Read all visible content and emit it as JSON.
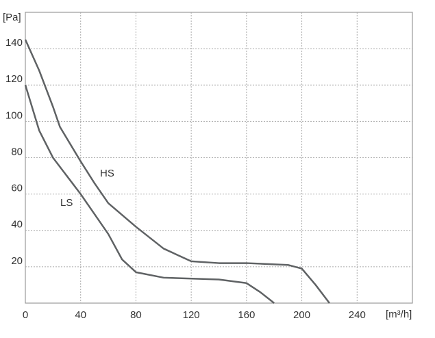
{
  "chart_data": {
    "type": "line",
    "y_label": "[Pa]",
    "x_label": "[m³/h]",
    "xlim": [
      0,
      280
    ],
    "xticks": [
      0,
      40,
      80,
      120,
      160,
      200,
      240
    ],
    "ylim": [
      0,
      160
    ],
    "yticks": [
      20,
      40,
      60,
      80,
      100,
      120,
      140
    ],
    "grid": true,
    "series": [
      {
        "name": "HS",
        "color": "#5f6264",
        "x": [
          0,
          10,
          20,
          25,
          40,
          50,
          60,
          80,
          100,
          120,
          140,
          160,
          190,
          200,
          210,
          220
        ],
        "values": [
          145,
          128,
          108,
          97,
          78,
          66,
          55,
          42,
          30,
          23,
          22,
          22,
          21,
          19,
          10,
          0
        ]
      },
      {
        "name": "LS",
        "color": "#5f6264",
        "x": [
          0,
          10,
          20,
          30,
          40,
          60,
          70,
          80,
          100,
          140,
          160,
          170,
          180
        ],
        "values": [
          120,
          95,
          80,
          70,
          60,
          38,
          24,
          17,
          14,
          13,
          11,
          6,
          0
        ]
      }
    ]
  }
}
